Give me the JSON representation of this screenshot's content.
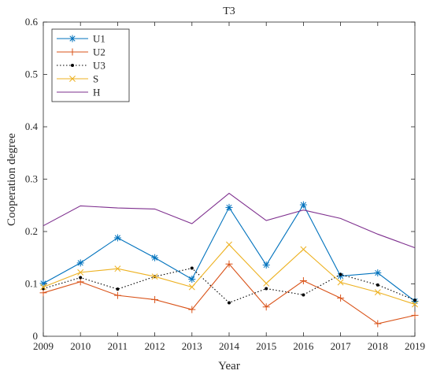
{
  "chart_data": {
    "type": "line",
    "title": "T3",
    "xlabel": "Year",
    "ylabel": "Cooperation degree",
    "x": [
      2009,
      2010,
      2011,
      2012,
      2013,
      2014,
      2015,
      2016,
      2017,
      2018,
      2019
    ],
    "xlim": [
      2009,
      2019
    ],
    "ylim": [
      0,
      0.6
    ],
    "xticks": [
      "2009",
      "2010",
      "2011",
      "2012",
      "2013",
      "2014",
      "2015",
      "2016",
      "2017",
      "2018",
      "2019"
    ],
    "yticks": [
      "0",
      "0.1",
      "0.2",
      "0.3",
      "0.4",
      "0.5",
      "0.6"
    ],
    "grid": false,
    "legend_position": "top-left",
    "series": [
      {
        "name": "U1",
        "color": "#0072BD",
        "marker": "asterisk",
        "dash": "solid",
        "values": [
          0.101,
          0.14,
          0.188,
          0.15,
          0.109,
          0.246,
          0.136,
          0.251,
          0.115,
          0.121,
          0.067
        ]
      },
      {
        "name": "U2",
        "color": "#D95319",
        "marker": "plus",
        "dash": "solid",
        "values": [
          0.083,
          0.104,
          0.078,
          0.07,
          0.051,
          0.138,
          0.056,
          0.106,
          0.073,
          0.024,
          0.04
        ]
      },
      {
        "name": "U3",
        "color": "#000000",
        "marker": "dot",
        "dash": "dotted",
        "values": [
          0.091,
          0.112,
          0.09,
          0.114,
          0.13,
          0.064,
          0.091,
          0.079,
          0.118,
          0.098,
          0.069
        ]
      },
      {
        "name": "S",
        "color": "#EDB120",
        "marker": "x",
        "dash": "solid",
        "values": [
          0.094,
          0.122,
          0.129,
          0.114,
          0.094,
          0.175,
          0.101,
          0.166,
          0.103,
          0.084,
          0.061
        ]
      },
      {
        "name": "H",
        "color": "#7E2F8E",
        "marker": "none",
        "dash": "solid",
        "values": [
          0.211,
          0.249,
          0.245,
          0.243,
          0.215,
          0.273,
          0.221,
          0.241,
          0.225,
          0.195,
          0.169
        ]
      }
    ]
  }
}
